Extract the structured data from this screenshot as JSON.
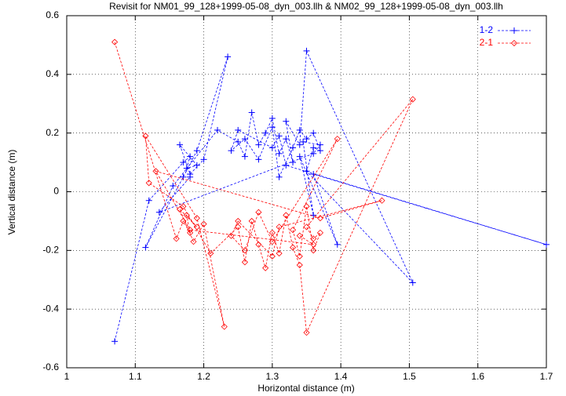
{
  "chart_data": {
    "type": "line",
    "title": "Revisit for NM01_99_128+1999-05-08_dyn_003.llh & NM02_99_128+1999-05-08_dyn_003.llh",
    "x_label": "Horizontal distance (m)",
    "y_label": "Vertical distance (m)",
    "xlim": [
      1,
      1.7
    ],
    "ylim": [
      -0.6,
      0.6
    ],
    "xticks": [
      1,
      1.1,
      1.2,
      1.3,
      1.4,
      1.5,
      1.6,
      1.7
    ],
    "yticks": [
      -0.6,
      -0.4,
      -0.2,
      0,
      0.2,
      0.4,
      0.6
    ],
    "grid": true,
    "legend": "top right",
    "series": [
      {
        "name": "1-2",
        "color": "#0000ff",
        "marker": "plus",
        "x": [
          1.07,
          1.12,
          1.17,
          1.18,
          1.175,
          1.19,
          1.165,
          1.18,
          1.2,
          1.235,
          1.19,
          1.17,
          1.115,
          1.155,
          1.22,
          1.25,
          1.26,
          1.27,
          1.28,
          1.29,
          1.3,
          1.31,
          1.32,
          1.33,
          1.32,
          1.34,
          1.35,
          1.505,
          1.35,
          1.36,
          1.37,
          1.36,
          1.35,
          1.34,
          1.33,
          1.31,
          1.3,
          1.28,
          1.26,
          1.24,
          1.25,
          1.3,
          1.31,
          1.32,
          1.7,
          1.36,
          1.395,
          1.34,
          1.36,
          1.345,
          1.37,
          1.36,
          1.135,
          1.18
        ],
        "values": [
          -0.51,
          -0.03,
          0.1,
          0.12,
          0.08,
          0.09,
          0.16,
          0.06,
          0.11,
          0.46,
          0.14,
          0.05,
          -0.19,
          0.02,
          0.21,
          0.17,
          0.12,
          0.27,
          0.16,
          0.2,
          0.25,
          0.13,
          0.18,
          0.1,
          0.24,
          0.16,
          0.48,
          -0.31,
          0.07,
          0.15,
          0.14,
          0.2,
          0.18,
          0.21,
          0.15,
          0.05,
          0.22,
          0.11,
          0.18,
          0.14,
          0.21,
          0.15,
          0.19,
          0.09,
          -0.18,
          0.06,
          -0.18,
          0.12,
          -0.08,
          0.17,
          0.16,
          0.13,
          -0.07,
          0.05
        ]
      },
      {
        "name": "2-1",
        "color": "#ff0000",
        "marker": "diamond",
        "x": [
          1.07,
          1.16,
          1.17,
          1.18,
          1.175,
          1.19,
          1.165,
          1.185,
          1.2,
          1.23,
          1.19,
          1.115,
          1.12,
          1.17,
          1.21,
          1.25,
          1.26,
          1.27,
          1.28,
          1.29,
          1.3,
          1.31,
          1.32,
          1.33,
          1.34,
          1.35,
          1.505,
          1.35,
          1.36,
          1.37,
          1.36,
          1.35,
          1.34,
          1.33,
          1.395,
          1.3,
          1.28,
          1.26,
          1.24,
          1.25,
          1.3,
          1.31,
          1.46,
          1.37,
          1.13,
          1.18,
          1.36,
          1.34
        ],
        "values": [
          0.51,
          -0.16,
          -0.1,
          -0.14,
          -0.08,
          -0.12,
          -0.06,
          -0.17,
          -0.11,
          -0.46,
          -0.09,
          0.19,
          0.03,
          -0.05,
          -0.21,
          -0.12,
          -0.24,
          -0.1,
          -0.18,
          -0.26,
          -0.14,
          -0.21,
          -0.08,
          -0.19,
          -0.25,
          -0.48,
          0.315,
          -0.12,
          -0.16,
          -0.14,
          -0.2,
          -0.05,
          -0.22,
          -0.13,
          0.18,
          -0.17,
          -0.07,
          -0.2,
          -0.15,
          -0.1,
          -0.22,
          -0.12,
          -0.03,
          -0.09,
          0.07,
          -0.13,
          -0.18,
          -0.15
        ]
      }
    ]
  }
}
